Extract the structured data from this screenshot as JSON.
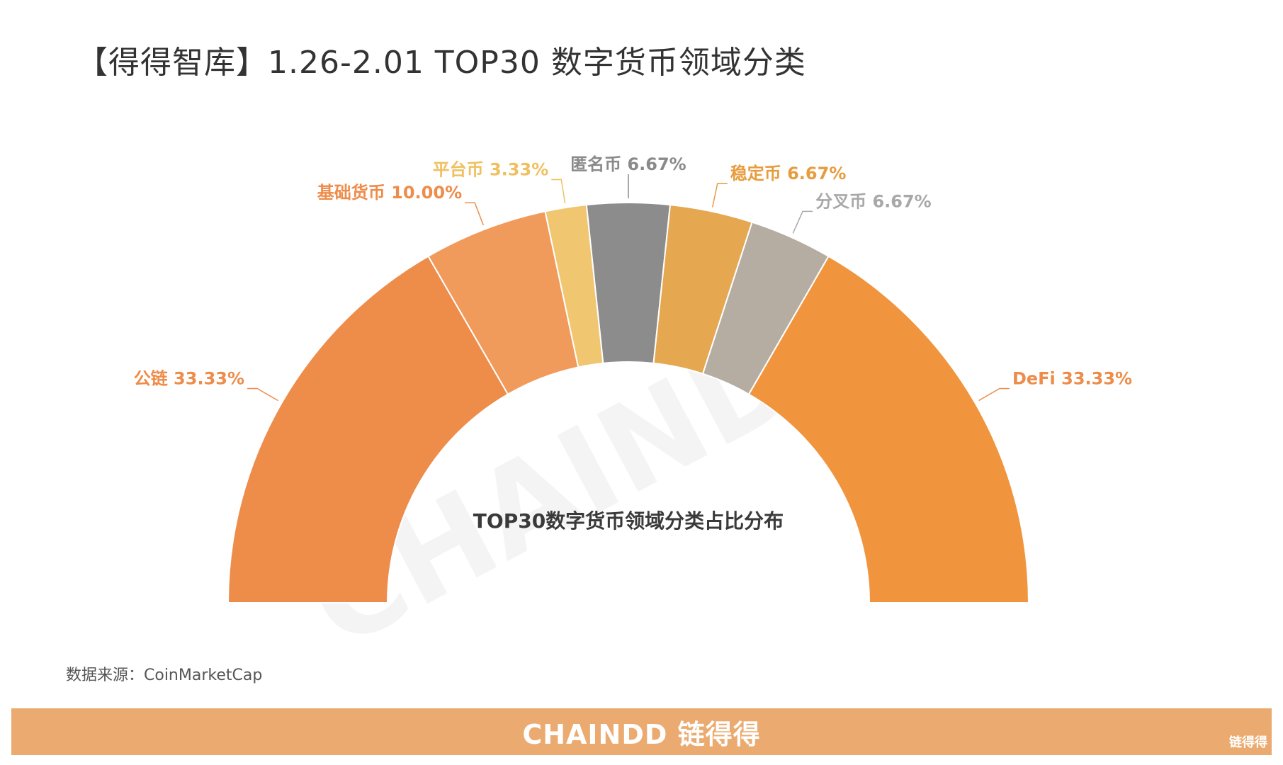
{
  "header": {
    "title": "【得得智库】1.26-2.01  TOP30 数字货币领域分类"
  },
  "chart_data": {
    "type": "pie",
    "title": "TOP30数字货币领域分类占比分布",
    "categories": [
      "公链",
      "基础货币",
      "平台币",
      "匿名币",
      "稳定币",
      "分叉币",
      "DeFi"
    ],
    "values": [
      33.33,
      10.0,
      3.33,
      6.67,
      6.67,
      6.67,
      33.33
    ],
    "colors": [
      "#ee8c4a",
      "#f09b5b",
      "#f0c671",
      "#8c8c8c",
      "#e5a750",
      "#b5aca2",
      "#f0953e"
    ],
    "labels": [
      "公链 33.33%",
      "基础货币 10.00%",
      "平台币 3.33%",
      "匿名币 6.67%",
      "稳定币 6.67%",
      "分叉币 6.67%",
      "DeFi 33.33%"
    ],
    "label_colors": [
      "#ee8c4a",
      "#ee8c4a",
      "#f0c060",
      "#8a8a8a",
      "#e79c3e",
      "#a8a8a8",
      "#ee8c4a"
    ]
  },
  "source": {
    "text": "数据来源：CoinMarketCap"
  },
  "footer": {
    "brand": "CHAINDD 链得得",
    "logo_text": "链得得"
  },
  "watermark": {
    "text": "CHAINDD"
  }
}
